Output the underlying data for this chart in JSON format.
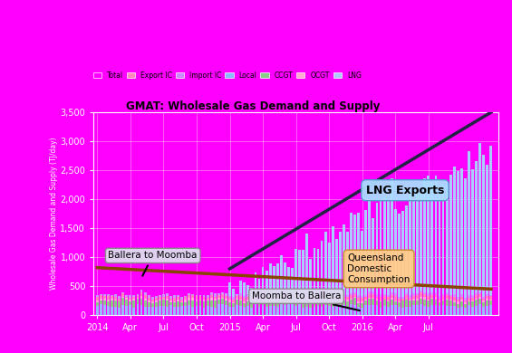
{
  "title": "GMAT: Wholesale Gas Demand and Supply",
  "ylabel": "Wholesale Gas Demand and Supply (TJ/day)",
  "background_color": "#FF00FF",
  "plot_bg_color": "#FF00FF",
  "ylim": [
    0,
    3500
  ],
  "yticks": [
    0,
    500,
    1000,
    1500,
    2000,
    2500,
    3000,
    3500
  ],
  "ytick_labels": [
    "0",
    "500",
    "1,000",
    "1,500",
    "2,000",
    "2,500",
    "3,000",
    "3,500"
  ],
  "n_points": 108,
  "legend_items": [
    "Total",
    "Export IC",
    "Import IC",
    "Local",
    "CCGT",
    "OCGT",
    "LNG"
  ],
  "legend_colors": [
    "#FF00FF",
    "#FF88BB",
    "#CC88FF",
    "#88BBFF",
    "#88CC88",
    "#FFAACC",
    "#AACCFF"
  ],
  "tick_labels": [
    "2014",
    "Apr",
    "Jul",
    "Oct",
    "2015",
    "Apr",
    "Jul",
    "Oct",
    "2016",
    "Apr",
    "Jul"
  ],
  "tick_positions": [
    0,
    9,
    18,
    27,
    36,
    45,
    54,
    63,
    72,
    81,
    90
  ],
  "annotation_btm": "Ballera to Moomba",
  "annotation_mtb": "Moomba to Ballera",
  "annotation_lng": "LNG Exports",
  "annotation_qdc": "Queensland\nDomestic\nConsumption",
  "lng_line_color": "#222244",
  "btm_line_color": "#884400",
  "seed": 42
}
